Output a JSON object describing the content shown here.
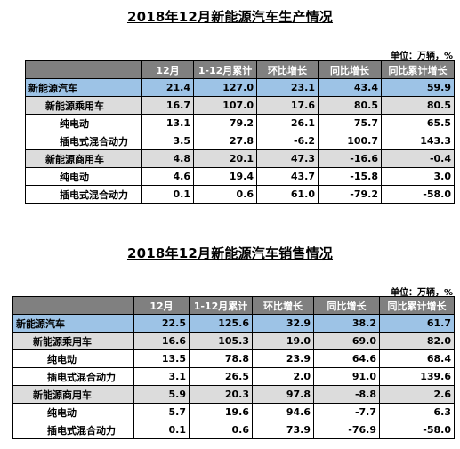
{
  "tables": [
    {
      "title": "2018年12月新能源汽车生产情况",
      "unit": "单位：万辆，%",
      "headers": [
        "",
        "12月",
        "1-12月累计",
        "环比增长",
        "同比增长",
        "同比累计增长"
      ],
      "rows": [
        {
          "label": "新能源汽车",
          "level": "total",
          "values": [
            "21.4",
            "127.0",
            "23.1",
            "43.4",
            "59.9"
          ]
        },
        {
          "label": "新能源乘用车",
          "level": "sub",
          "values": [
            "16.7",
            "107.0",
            "17.6",
            "80.5",
            "80.5"
          ]
        },
        {
          "label": "纯电动",
          "level": "item",
          "values": [
            "13.1",
            "79.2",
            "26.1",
            "75.7",
            "65.5"
          ]
        },
        {
          "label": "插电式混合动力",
          "level": "item",
          "values": [
            "3.5",
            "27.8",
            "-6.2",
            "100.7",
            "143.3"
          ]
        },
        {
          "label": "新能源商用车",
          "level": "sub",
          "values": [
            "4.8",
            "20.1",
            "47.3",
            "-16.6",
            "-0.4"
          ]
        },
        {
          "label": "纯电动",
          "level": "item",
          "values": [
            "4.6",
            "19.4",
            "43.7",
            "-15.8",
            "3.0"
          ]
        },
        {
          "label": "插电式混合动力",
          "level": "item",
          "values": [
            "0.1",
            "0.6",
            "61.0",
            "-79.2",
            "-58.0"
          ]
        }
      ]
    },
    {
      "title": "2018年12月新能源汽车销售情况",
      "unit": "单位：万辆，%",
      "headers": [
        "",
        "12月",
        "1-12月累计",
        "环比增长",
        "同比增长",
        "同比累计增长"
      ],
      "rows": [
        {
          "label": "新能源汽车",
          "level": "total",
          "values": [
            "22.5",
            "125.6",
            "32.9",
            "38.2",
            "61.7"
          ]
        },
        {
          "label": "新能源乘用车",
          "level": "sub",
          "values": [
            "16.6",
            "105.3",
            "19.0",
            "69.0",
            "82.0"
          ]
        },
        {
          "label": "纯电动",
          "level": "item",
          "values": [
            "13.5",
            "78.8",
            "23.9",
            "64.6",
            "68.4"
          ]
        },
        {
          "label": "插电式混合动力",
          "level": "item",
          "values": [
            "3.1",
            "26.5",
            "2.0",
            "91.0",
            "139.6"
          ]
        },
        {
          "label": "新能源商用车",
          "level": "sub",
          "values": [
            "5.9",
            "20.3",
            "97.8",
            "-8.8",
            "2.6"
          ]
        },
        {
          "label": "纯电动",
          "level": "item",
          "values": [
            "5.7",
            "19.6",
            "94.6",
            "-7.7",
            "6.3"
          ]
        },
        {
          "label": "插电式混合动力",
          "level": "item",
          "values": [
            "0.1",
            "0.6",
            "73.9",
            "-76.9",
            "-58.0"
          ]
        }
      ]
    }
  ]
}
